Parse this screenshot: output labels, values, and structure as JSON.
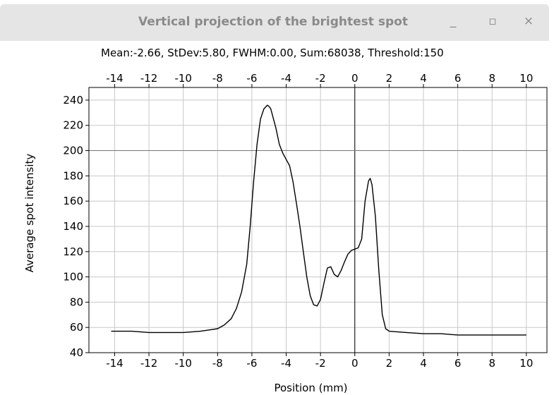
{
  "window": {
    "title": "Vertical projection of the brightest spot",
    "minimize_glyph": "_",
    "maximize_glyph": "▫",
    "close_glyph": "×"
  },
  "stats_line": "Mean:-2.66, StDev:5.80, FWHM:0.00, Sum:68038, Threshold:150",
  "chart_data": {
    "type": "line",
    "title": "",
    "xlabel": "Position (mm)",
    "ylabel": "Average spot intensity",
    "xlim": [
      -15.5,
      11.2
    ],
    "ylim": [
      40,
      250
    ],
    "xticks": [
      -14,
      -12,
      -10,
      -8,
      -6,
      -4,
      -2,
      0,
      2,
      4,
      6,
      8,
      10
    ],
    "yticks": [
      40,
      60,
      80,
      100,
      120,
      140,
      160,
      180,
      200,
      220,
      240
    ],
    "grid": true,
    "axis_zero_lines": true,
    "series": [
      {
        "color": "#000000",
        "x": [
          -14.2,
          -13.0,
          -12.0,
          -11.0,
          -10.0,
          -9.0,
          -8.5,
          -8.0,
          -7.6,
          -7.2,
          -6.9,
          -6.6,
          -6.3,
          -6.1,
          -5.9,
          -5.7,
          -5.5,
          -5.3,
          -5.1,
          -5.0,
          -4.9,
          -4.8,
          -4.6,
          -4.4,
          -4.2,
          -4.0,
          -3.8,
          -3.6,
          -3.4,
          -3.2,
          -3.0,
          -2.8,
          -2.6,
          -2.4,
          -2.2,
          -2.0,
          -1.8,
          -1.6,
          -1.4,
          -1.2,
          -1.0,
          -0.8,
          -0.6,
          -0.4,
          -0.2,
          0.0,
          0.2,
          0.4,
          0.6,
          0.8,
          0.9,
          1.0,
          1.2,
          1.4,
          1.6,
          1.8,
          2.0,
          3.0,
          4.0,
          5.0,
          6.0,
          7.0,
          8.0,
          9.0,
          10.0
        ],
        "y": [
          57,
          57,
          56,
          56,
          56,
          57,
          58,
          59,
          62,
          67,
          75,
          88,
          110,
          140,
          175,
          205,
          225,
          233,
          236,
          235,
          233,
          228,
          218,
          205,
          198,
          193,
          188,
          175,
          158,
          140,
          120,
          100,
          85,
          78,
          77,
          82,
          95,
          107,
          108,
          102,
          100,
          105,
          112,
          118,
          121,
          122,
          123,
          130,
          160,
          176,
          178,
          173,
          148,
          105,
          70,
          59,
          57,
          56,
          55,
          55,
          54,
          54,
          54,
          54,
          54
        ]
      }
    ]
  }
}
